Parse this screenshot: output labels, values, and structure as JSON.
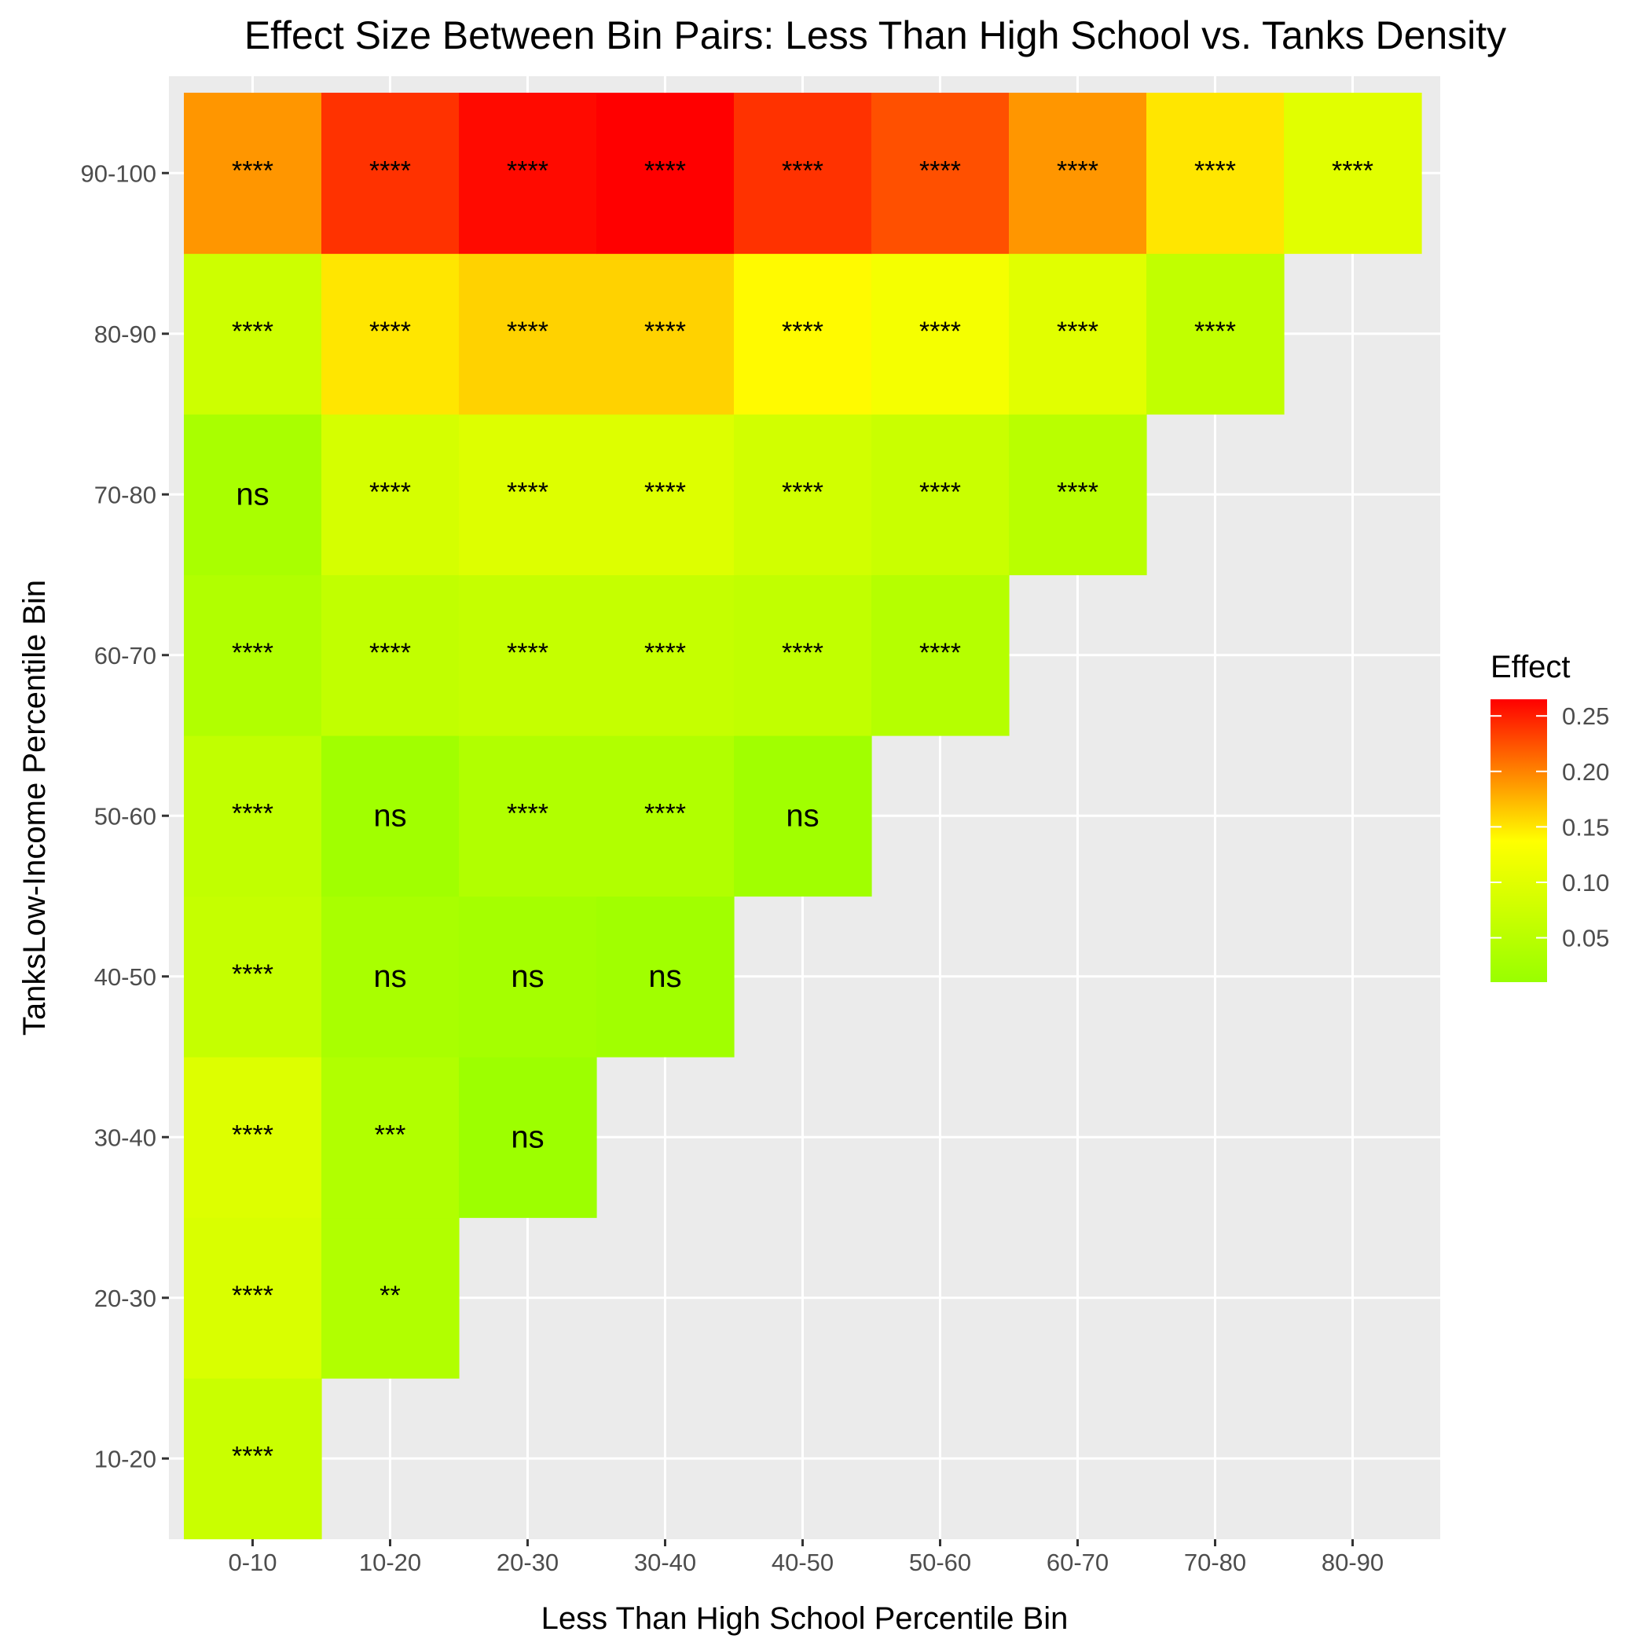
{
  "chart_data": {
    "type": "heatmap",
    "title": "Effect Size Between Bin Pairs: Less Than High School vs. Tanks Density",
    "xlabel": "Less Than High School Percentile Bin",
    "ylabel": "TanksLow-Income Percentile Bin",
    "x_categories": [
      "0-10",
      "10-20",
      "20-30",
      "30-40",
      "40-50",
      "50-60",
      "60-70",
      "70-80",
      "80-90"
    ],
    "y_categories": [
      "10-20",
      "20-30",
      "30-40",
      "40-50",
      "50-60",
      "60-70",
      "70-80",
      "80-90",
      "90-100"
    ],
    "legend": {
      "title": "Effect",
      "breaks": [
        0.05,
        0.1,
        0.15,
        0.2,
        0.25
      ],
      "break_labels": [
        "0.05",
        "0.10",
        "0.15",
        "0.20",
        "0.25"
      ],
      "range": [
        0.01,
        0.265
      ],
      "colors": {
        "low": "#99ff00",
        "mid": "#ffff00",
        "high": "#ff0000"
      },
      "position": "right"
    },
    "cells": [
      {
        "x": "0-10",
        "y": "10-20",
        "value": 0.07,
        "label": "****"
      },
      {
        "x": "0-10",
        "y": "20-30",
        "value": 0.09,
        "label": "****"
      },
      {
        "x": "10-20",
        "y": "20-30",
        "value": 0.04,
        "label": "**"
      },
      {
        "x": "0-10",
        "y": "30-40",
        "value": 0.095,
        "label": "****"
      },
      {
        "x": "10-20",
        "y": "30-40",
        "value": 0.04,
        "label": "***"
      },
      {
        "x": "20-30",
        "y": "30-40",
        "value": 0.015,
        "label": "ns"
      },
      {
        "x": "0-10",
        "y": "40-50",
        "value": 0.065,
        "label": "****"
      },
      {
        "x": "10-20",
        "y": "40-50",
        "value": 0.03,
        "label": "ns"
      },
      {
        "x": "20-30",
        "y": "40-50",
        "value": 0.025,
        "label": "ns"
      },
      {
        "x": "30-40",
        "y": "40-50",
        "value": 0.02,
        "label": "ns"
      },
      {
        "x": "0-10",
        "y": "50-60",
        "value": 0.06,
        "label": "****"
      },
      {
        "x": "10-20",
        "y": "50-60",
        "value": 0.02,
        "label": "ns"
      },
      {
        "x": "20-30",
        "y": "50-60",
        "value": 0.04,
        "label": "****"
      },
      {
        "x": "30-40",
        "y": "50-60",
        "value": 0.04,
        "label": "****"
      },
      {
        "x": "40-50",
        "y": "50-60",
        "value": 0.02,
        "label": "ns"
      },
      {
        "x": "0-10",
        "y": "60-70",
        "value": 0.04,
        "label": "****"
      },
      {
        "x": "10-20",
        "y": "60-70",
        "value": 0.06,
        "label": "****"
      },
      {
        "x": "20-30",
        "y": "60-70",
        "value": 0.065,
        "label": "****"
      },
      {
        "x": "30-40",
        "y": "60-70",
        "value": 0.065,
        "label": "****"
      },
      {
        "x": "40-50",
        "y": "60-70",
        "value": 0.06,
        "label": "****"
      },
      {
        "x": "50-60",
        "y": "60-70",
        "value": 0.045,
        "label": "****"
      },
      {
        "x": "0-10",
        "y": "70-80",
        "value": 0.03,
        "label": "ns"
      },
      {
        "x": "10-20",
        "y": "70-80",
        "value": 0.085,
        "label": "****"
      },
      {
        "x": "20-30",
        "y": "70-80",
        "value": 0.095,
        "label": "****"
      },
      {
        "x": "30-40",
        "y": "70-80",
        "value": 0.095,
        "label": "****"
      },
      {
        "x": "40-50",
        "y": "70-80",
        "value": 0.08,
        "label": "****"
      },
      {
        "x": "50-60",
        "y": "70-80",
        "value": 0.07,
        "label": "****"
      },
      {
        "x": "60-70",
        "y": "70-80",
        "value": 0.05,
        "label": "****"
      },
      {
        "x": "0-10",
        "y": "80-90",
        "value": 0.075,
        "label": "****"
      },
      {
        "x": "10-20",
        "y": "80-90",
        "value": 0.15,
        "label": "****"
      },
      {
        "x": "20-30",
        "y": "80-90",
        "value": 0.16,
        "label": "****"
      },
      {
        "x": "30-40",
        "y": "80-90",
        "value": 0.16,
        "label": "****"
      },
      {
        "x": "40-50",
        "y": "80-90",
        "value": 0.14,
        "label": "****"
      },
      {
        "x": "50-60",
        "y": "80-90",
        "value": 0.125,
        "label": "****"
      },
      {
        "x": "60-70",
        "y": "80-90",
        "value": 0.1,
        "label": "****"
      },
      {
        "x": "70-80",
        "y": "80-90",
        "value": 0.06,
        "label": "****"
      },
      {
        "x": "0-10",
        "y": "90-100",
        "value": 0.19,
        "label": "****"
      },
      {
        "x": "10-20",
        "y": "90-100",
        "value": 0.24,
        "label": "****"
      },
      {
        "x": "20-30",
        "y": "90-100",
        "value": 0.26,
        "label": "****"
      },
      {
        "x": "30-40",
        "y": "90-100",
        "value": 0.265,
        "label": "****"
      },
      {
        "x": "40-50",
        "y": "90-100",
        "value": 0.24,
        "label": "****"
      },
      {
        "x": "50-60",
        "y": "90-100",
        "value": 0.225,
        "label": "****"
      },
      {
        "x": "60-70",
        "y": "90-100",
        "value": 0.19,
        "label": "****"
      },
      {
        "x": "70-80",
        "y": "90-100",
        "value": 0.15,
        "label": "****"
      },
      {
        "x": "80-90",
        "y": "90-100",
        "value": 0.1,
        "label": "****"
      }
    ]
  }
}
